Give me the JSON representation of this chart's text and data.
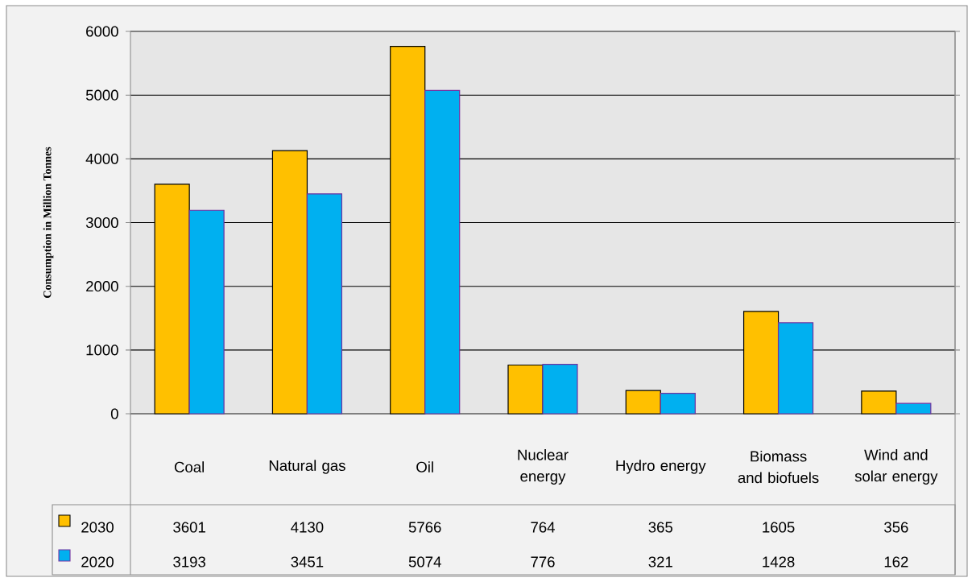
{
  "chart_data": {
    "type": "bar",
    "ylabel": "Consumption in Million Tonnes",
    "categories": [
      "Coal",
      "Natural gas",
      "Oil",
      "Nuclear energy",
      "Hydro energy",
      "Biomass and biofuels",
      "Wind and solar energy"
    ],
    "series": [
      {
        "name": "2030",
        "color": "#ffc000",
        "values": [
          3601,
          4130,
          5766,
          764,
          365,
          1605,
          356
        ]
      },
      {
        "name": "2020",
        "color": "#00b0f0",
        "values": [
          3193,
          3451,
          5074,
          776,
          321,
          1428,
          162
        ]
      }
    ],
    "ylim": [
      0,
      6000
    ],
    "yticks": [
      0,
      1000,
      2000,
      3000,
      4000,
      5000,
      6000
    ],
    "grid": "y",
    "legend": "bottom",
    "data_labels": true
  }
}
